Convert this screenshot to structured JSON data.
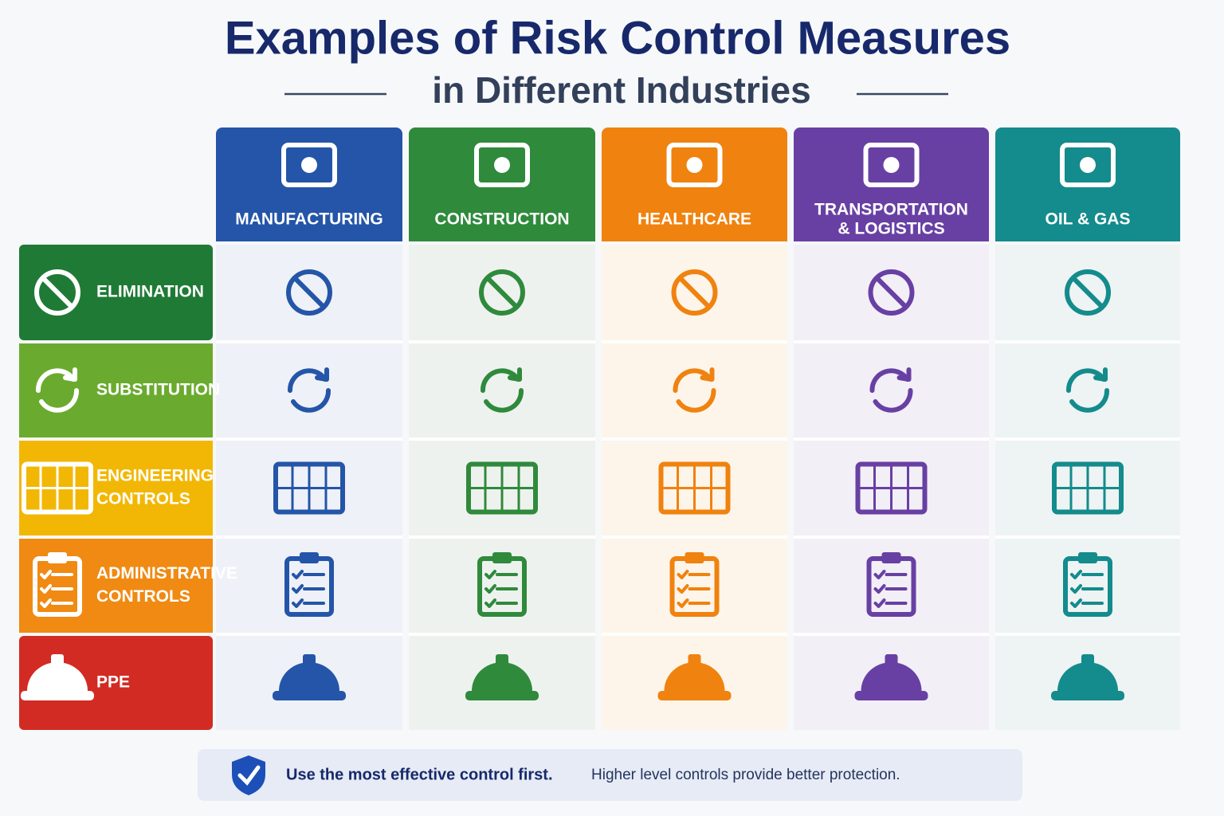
{
  "header": {
    "title": "Examples of Risk Control Measures",
    "subtitle": "in Different Industries"
  },
  "columns": [
    {
      "lines": [
        "MANUFACTURING"
      ]
    },
    {
      "lines": [
        "CONSTRUCTION"
      ]
    },
    {
      "lines": [
        "HEALTHCARE"
      ]
    },
    {
      "lines": [
        "TRANSPORTATION",
        "& LOGISTICS"
      ]
    },
    {
      "lines": [
        "OIL & GAS"
      ]
    }
  ],
  "rows": [
    {
      "lines": [
        "ELIMINATION"
      ]
    },
    {
      "lines": [
        "SUBSTITUTION"
      ]
    },
    {
      "lines": [
        "ENGINEERING",
        "CONTROLS"
      ]
    },
    {
      "lines": [
        "ADMINISTRATIVE",
        "CONTROLS"
      ]
    },
    {
      "lines": [
        "PPE"
      ]
    }
  ],
  "footer": {
    "emphasis": "Use the most effective control first.",
    "text": "Higher level controls provide better protection."
  }
}
